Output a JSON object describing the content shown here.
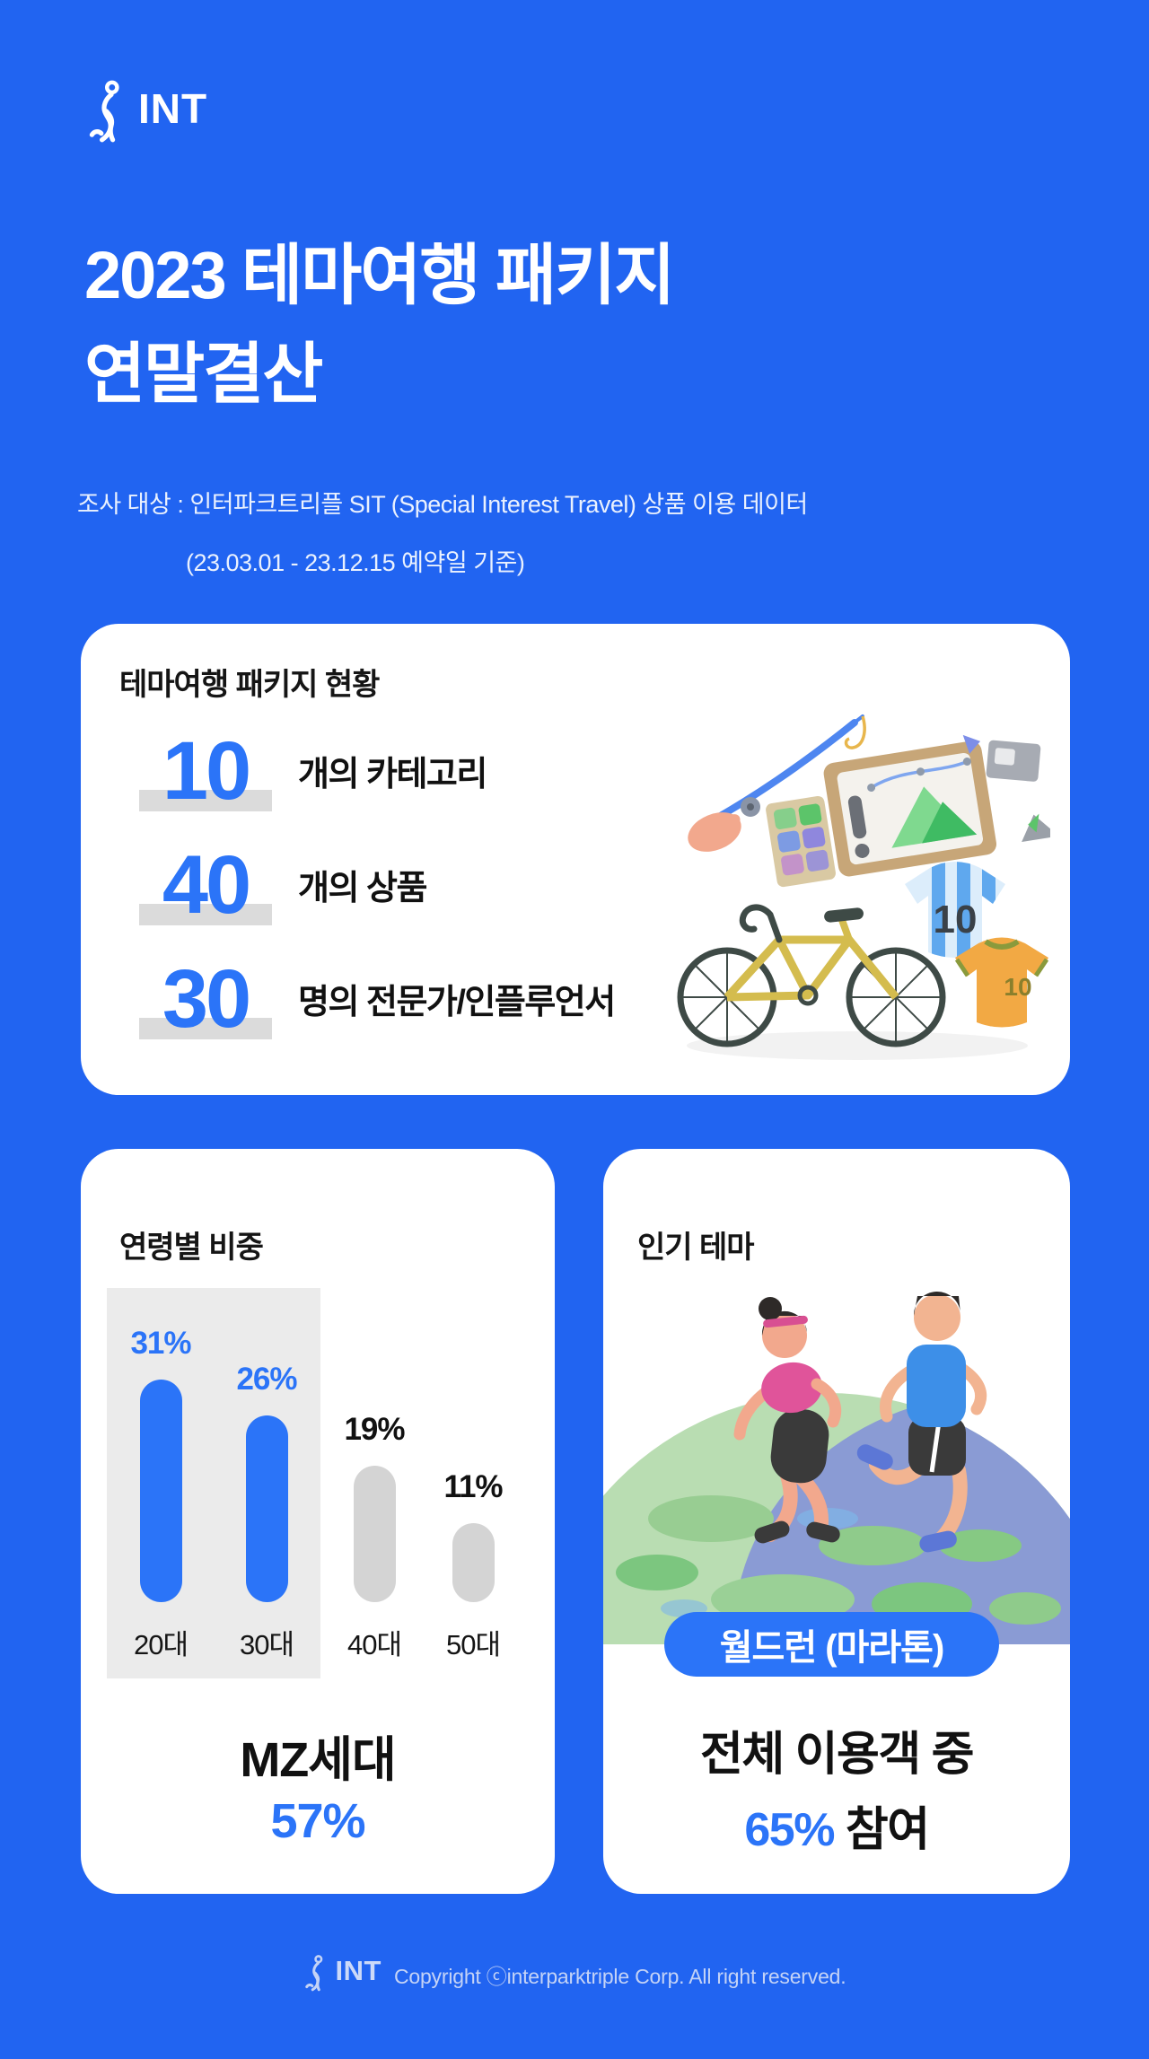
{
  "theme": {
    "background_blue": "#2164F1",
    "accent_blue": "#2B74F8",
    "number_underline_gray": "#DBDBDB",
    "chart_highlight_gray": "#EBEBEB",
    "inactive_bar_gray": "#D4D4D4",
    "text_dark": "#111111",
    "text_white": "#FFFFFF"
  },
  "header": {
    "logo_text": "INT"
  },
  "title": {
    "line1": "2023 테마여행 패키지",
    "line2": "연말결산"
  },
  "subtitle": {
    "line1": "조사 대상 : 인터파크트리플 SIT (Special Interest Travel) 상품 이용 데이터",
    "line2": "(23.03.01 - 23.12.15 예약일 기준)"
  },
  "overview_card": {
    "title": "테마여행 패키지 현황",
    "stats": [
      {
        "value": "10",
        "label": "개의 카테고리"
      },
      {
        "value": "40",
        "label": "개의 상품"
      },
      {
        "value": "30",
        "label": "명의 전문가/인플루언서"
      }
    ]
  },
  "age_card": {
    "title": "연령별 비중",
    "summary_label": "MZ세대",
    "summary_value": "57%"
  },
  "theme_card": {
    "title": "인기 테마",
    "badge": "월드런 (마라톤)",
    "line1": "전체 이용객 중",
    "value": "65%",
    "value_suffix": " 참여"
  },
  "footer": {
    "logo_text": "INT",
    "copyright": "Copyright ⓒinterparktriple Corp. All right reserved."
  },
  "chart_data": [
    {
      "type": "bar",
      "title": "연령별 비중",
      "categories": [
        "20대",
        "30대",
        "40대",
        "50대"
      ],
      "values": [
        31,
        26,
        19,
        11
      ],
      "value_labels": [
        "31%",
        "26%",
        "19%",
        "11%"
      ],
      "bar_colors": [
        "#2B74F8",
        "#2B74F8",
        "#D4D4D4",
        "#D4D4D4"
      ],
      "label_colors": [
        "#2B74F8",
        "#2B74F8",
        "#111111",
        "#111111"
      ],
      "highlight_group": "20대+30대 = MZ세대 57%",
      "ylim": [
        0,
        35
      ],
      "grid": false,
      "legend": null
    }
  ]
}
